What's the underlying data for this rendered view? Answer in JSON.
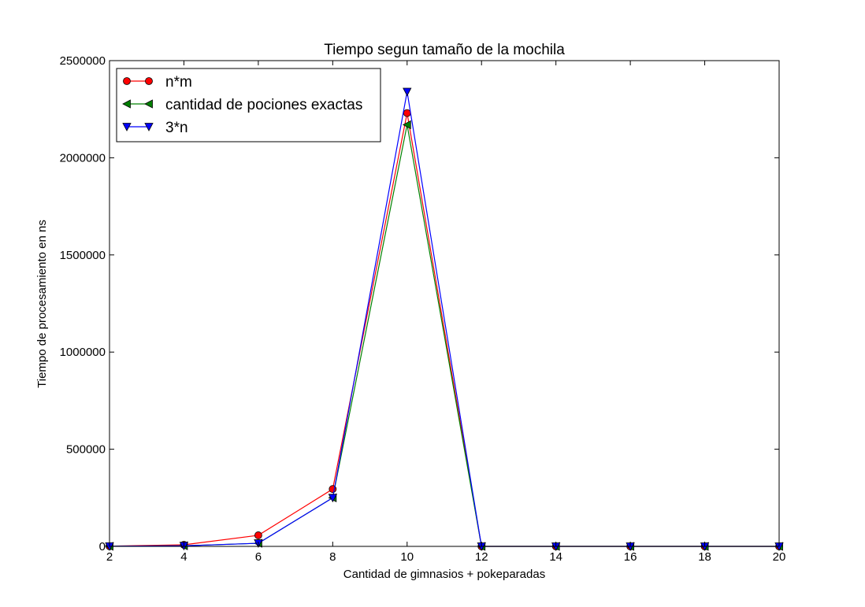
{
  "chart_data": {
    "type": "line",
    "title": "Tiempo segun tamaño de la mochila",
    "xlabel": "Cantidad de gimnasios + pokeparadas",
    "ylabel": "Tiempo de procesamiento en ns",
    "xlim": [
      2,
      20
    ],
    "ylim": [
      0,
      2500000
    ],
    "x_ticks": [
      "2",
      "4",
      "6",
      "8",
      "10",
      "12",
      "14",
      "16",
      "18",
      "20"
    ],
    "y_ticks": [
      "0",
      "500000",
      "1000000",
      "1500000",
      "2000000",
      "2500000"
    ],
    "x": [
      2,
      4,
      6,
      8,
      10,
      12,
      14,
      16,
      18,
      20
    ],
    "grid": false,
    "legend_position": "top-left",
    "series": [
      {
        "name": "n*m",
        "color": "#ff0000",
        "marker": "circle",
        "values": [
          1000,
          8000,
          57000,
          295000,
          2230000,
          0,
          0,
          0,
          0,
          0
        ]
      },
      {
        "name": "cantidad de pociones exactas",
        "color": "#008000",
        "marker": "triangle-left",
        "values": [
          500,
          3000,
          16000,
          250000,
          2170000,
          0,
          0,
          0,
          0,
          0
        ]
      },
      {
        "name": "3*n",
        "color": "#0000ff",
        "marker": "triangle-down",
        "values": [
          500,
          3000,
          16000,
          250000,
          2340000,
          0,
          0,
          0,
          0,
          0
        ]
      }
    ]
  }
}
